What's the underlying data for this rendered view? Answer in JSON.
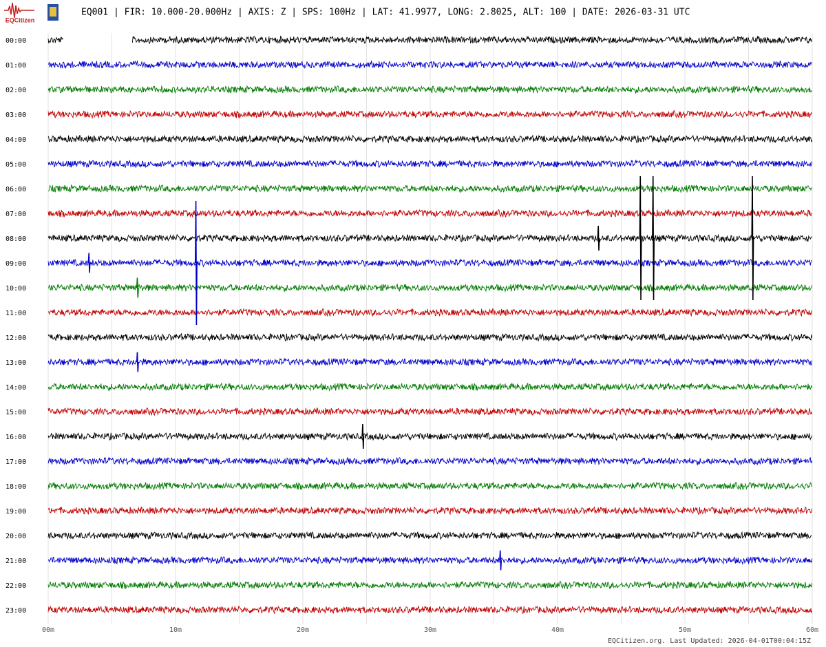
{
  "header": {
    "logo_text": "EQCitizen",
    "title": "EQ001 | FIR: 10.000-20.000Hz | AXIS: Z | SPS: 100Hz | LAT: 41.9977, LONG: 2.8025, ALT: 100 | DATE: 2026-03-31 UTC"
  },
  "chart_data": {
    "type": "helicorder",
    "rows": [
      {
        "label": "00:00",
        "color": "#000000"
      },
      {
        "label": "01:00",
        "color": "#0000c8"
      },
      {
        "label": "02:00",
        "color": "#007a00"
      },
      {
        "label": "03:00",
        "color": "#c00000"
      },
      {
        "label": "04:00",
        "color": "#000000"
      },
      {
        "label": "05:00",
        "color": "#0000c8"
      },
      {
        "label": "06:00",
        "color": "#007a00"
      },
      {
        "label": "07:00",
        "color": "#c00000"
      },
      {
        "label": "08:00",
        "color": "#000000"
      },
      {
        "label": "09:00",
        "color": "#0000c8"
      },
      {
        "label": "10:00",
        "color": "#007a00"
      },
      {
        "label": "11:00",
        "color": "#c00000"
      },
      {
        "label": "12:00",
        "color": "#000000"
      },
      {
        "label": "13:00",
        "color": "#0000c8"
      },
      {
        "label": "14:00",
        "color": "#007a00"
      },
      {
        "label": "15:00",
        "color": "#c00000"
      },
      {
        "label": "16:00",
        "color": "#000000"
      },
      {
        "label": "17:00",
        "color": "#0000c8"
      },
      {
        "label": "18:00",
        "color": "#007a00"
      },
      {
        "label": "19:00",
        "color": "#c00000"
      },
      {
        "label": "20:00",
        "color": "#000000"
      },
      {
        "label": "21:00",
        "color": "#0000c8"
      },
      {
        "label": "22:00",
        "color": "#007a00"
      },
      {
        "label": "23:00",
        "color": "#c00000"
      }
    ],
    "xlim": [
      0,
      60
    ],
    "xticks": [
      {
        "value": 0,
        "label": "00m"
      },
      {
        "value": 10,
        "label": "10m"
      },
      {
        "value": 20,
        "label": "20m"
      },
      {
        "value": 30,
        "label": "30m"
      },
      {
        "value": 40,
        "label": "40m"
      },
      {
        "value": 50,
        "label": "50m"
      },
      {
        "value": 60,
        "label": "60m"
      }
    ],
    "minor_xticks": [
      5,
      15,
      25,
      35,
      45,
      55
    ],
    "grid": true,
    "gaps": [
      {
        "row": 0,
        "start": 1.2,
        "end": 6.6
      }
    ],
    "events": [
      {
        "row": 8,
        "x": 46.5,
        "amplitude": 2.5
      },
      {
        "row": 8,
        "x": 47.5,
        "amplitude": 2.5
      },
      {
        "row": 8,
        "x": 55.3,
        "amplitude": 2.5
      },
      {
        "row": 8,
        "x": 43.2,
        "amplitude": 0.5
      },
      {
        "row": 9,
        "x": 11.6,
        "amplitude": 2.5
      },
      {
        "row": 9,
        "x": 3.2,
        "amplitude": 0.4
      },
      {
        "row": 10,
        "x": 7.0,
        "amplitude": 0.4
      },
      {
        "row": 13,
        "x": 7.0,
        "amplitude": 0.4
      },
      {
        "row": 16,
        "x": 24.7,
        "amplitude": 0.5
      },
      {
        "row": 21,
        "x": 35.5,
        "amplitude": 0.4
      }
    ]
  },
  "footer": "EQCitizen.org. Last Updated: 2026-04-01T00:04:15Z"
}
